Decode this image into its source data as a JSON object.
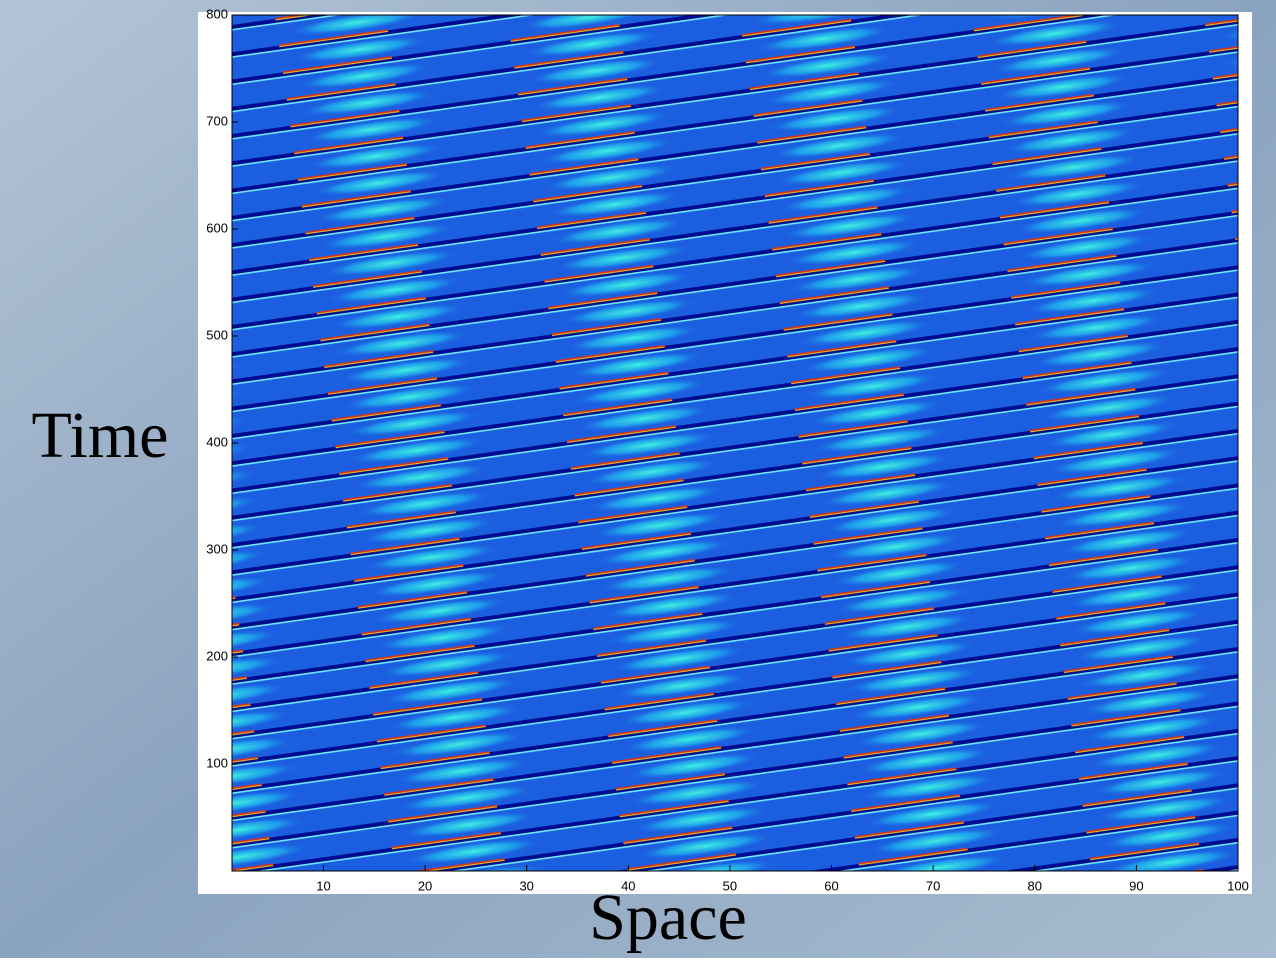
{
  "chart_data": {
    "type": "heatmap",
    "xlabel": "Space",
    "ylabel": "Time",
    "xlim": [
      1,
      100
    ],
    "ylim": [
      0,
      800
    ],
    "xticks": [
      10,
      20,
      30,
      40,
      50,
      60,
      70,
      80,
      90,
      100
    ],
    "yticks": [
      100,
      200,
      300,
      400,
      500,
      600,
      700,
      800
    ]
  }
}
